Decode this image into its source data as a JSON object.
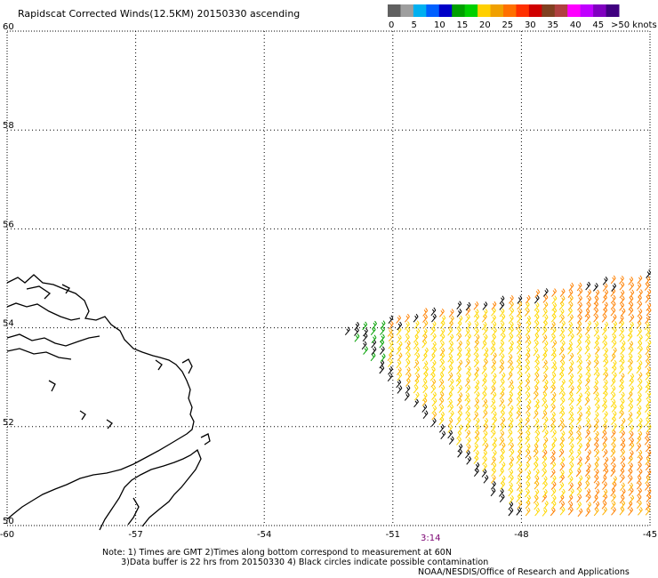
{
  "title": "Rapidscat Corrected Winds(12.5KM) 20150330 ascending",
  "legend": {
    "unit_label": ">50 knots",
    "labels": [
      "0",
      "5",
      "10",
      "15",
      "20",
      "25",
      "30",
      "35",
      "40",
      "45"
    ],
    "colors": [
      "#606060",
      "#9e9e9e",
      "#00b0f0",
      "#0060ff",
      "#0000c8",
      "#00a000",
      "#00d000",
      "#ffd000",
      "#f0a000",
      "#ff7000",
      "#ff3000",
      "#d00000",
      "#804020",
      "#b04040",
      "#ff00ff",
      "#c000ff",
      "#8000c0",
      "#400080"
    ]
  },
  "map": {
    "lon_labels": [
      "-60",
      "-57",
      "-54",
      "-51",
      "-48",
      "-45"
    ],
    "lat_labels": [
      "60",
      "58",
      "56",
      "54",
      "52",
      "50"
    ],
    "lon_range": [
      -60,
      -45
    ],
    "lat_range": [
      50,
      60
    ]
  },
  "time_label": "3:14",
  "notes": "Note: 1) Times are GMT 2)Times along bottom correspond to measurement at 60N\n       3)Data buffer is 22 hrs from 20150330 4) Black circles indicate possible contamination",
  "credit": "NOAA/NESDIS/Office of Research and Applications",
  "wind_colors": {
    "yellow": "#ffd700",
    "lightorange": "#ffb000",
    "orange": "#ff8000",
    "green": "#00a000",
    "black": "#000000"
  }
}
